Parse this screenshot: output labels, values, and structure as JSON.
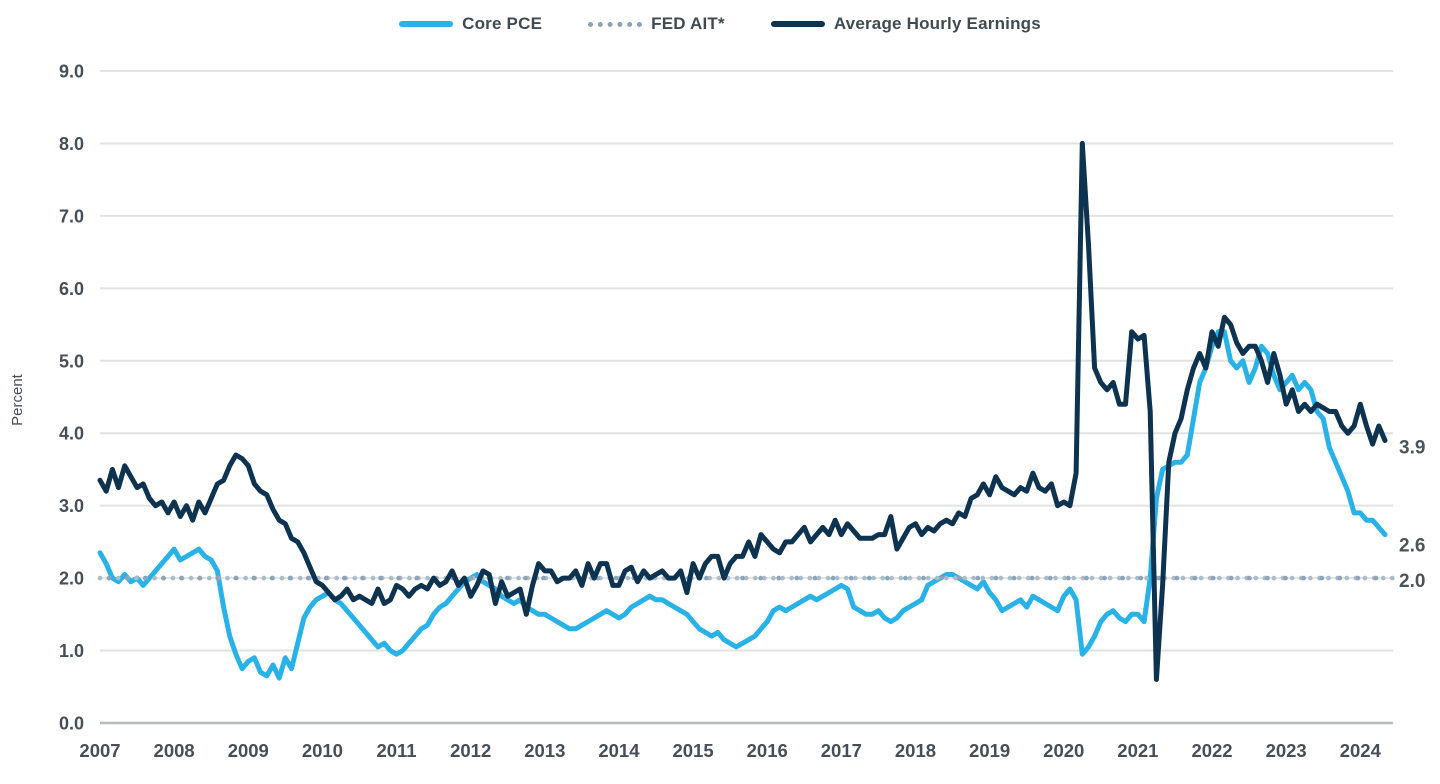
{
  "page": {
    "background": "#ffffff"
  },
  "legend": {
    "items": [
      {
        "label": "Core PCE",
        "color": "#29B2E8",
        "style": "solid"
      },
      {
        "label": "FED AIT*",
        "color": "#8CA3B8",
        "style": "dotted"
      },
      {
        "label": "Average Hourly Earnings",
        "color": "#0D3350",
        "style": "solid"
      }
    ]
  },
  "chart_data": {
    "type": "line",
    "ylabel": "Percent",
    "ylim": [
      0,
      9
    ],
    "ytick_labels": [
      "0.0",
      "1.0",
      "2.0",
      "3.0",
      "4.0",
      "5.0",
      "6.0",
      "7.0",
      "8.0",
      "9.0"
    ],
    "xtick_labels": [
      "2007",
      "2008",
      "2009",
      "2010",
      "2011",
      "2012",
      "2013",
      "2014",
      "2015",
      "2016",
      "2017",
      "2018",
      "2019",
      "2020",
      "2021",
      "2022",
      "2023",
      "2024"
    ],
    "x_frequency": "monthly",
    "x_start": "2007-01",
    "x_end": "2024-05",
    "grid": "horizontal",
    "legend_position": "top-center",
    "colors": {
      "gridline": "#E2E2E2",
      "zero_axis": "#B5BABA",
      "tick_text": "#464F58",
      "end_label_text": "#4A545C"
    },
    "end_labels": [
      {
        "text": "3.9",
        "value": 3.9,
        "series": "Average Hourly Earnings"
      },
      {
        "text": "2.6",
        "value": 2.6,
        "series": "Core PCE"
      },
      {
        "text": "2.0",
        "value": 2.0,
        "series": "FED AIT*"
      }
    ],
    "series": [
      {
        "name": "Core PCE",
        "color": "#29B2E8",
        "line_style": "solid",
        "values": [
          2.35,
          2.2,
          2.0,
          1.95,
          2.05,
          1.95,
          2.0,
          1.9,
          2.0,
          2.1,
          2.2,
          2.3,
          2.4,
          2.25,
          2.3,
          2.35,
          2.4,
          2.3,
          2.25,
          2.1,
          1.6,
          1.2,
          0.95,
          0.75,
          0.85,
          0.9,
          0.7,
          0.65,
          0.8,
          0.62,
          0.9,
          0.75,
          1.1,
          1.45,
          1.6,
          1.7,
          1.75,
          1.8,
          1.7,
          1.65,
          1.55,
          1.45,
          1.35,
          1.25,
          1.15,
          1.05,
          1.1,
          1.0,
          0.95,
          1.0,
          1.1,
          1.2,
          1.3,
          1.35,
          1.5,
          1.6,
          1.65,
          1.75,
          1.85,
          1.95,
          2.0,
          2.05,
          1.95,
          1.9,
          1.85,
          1.75,
          1.7,
          1.65,
          1.7,
          1.6,
          1.55,
          1.5,
          1.5,
          1.45,
          1.4,
          1.35,
          1.3,
          1.3,
          1.35,
          1.4,
          1.45,
          1.5,
          1.55,
          1.5,
          1.45,
          1.5,
          1.6,
          1.65,
          1.7,
          1.75,
          1.7,
          1.7,
          1.65,
          1.6,
          1.55,
          1.5,
          1.4,
          1.3,
          1.25,
          1.2,
          1.25,
          1.15,
          1.1,
          1.05,
          1.1,
          1.15,
          1.2,
          1.3,
          1.4,
          1.55,
          1.6,
          1.55,
          1.6,
          1.65,
          1.7,
          1.75,
          1.7,
          1.75,
          1.8,
          1.85,
          1.9,
          1.85,
          1.6,
          1.55,
          1.5,
          1.5,
          1.55,
          1.45,
          1.4,
          1.45,
          1.55,
          1.6,
          1.65,
          1.7,
          1.9,
          1.95,
          2.0,
          2.05,
          2.05,
          2.0,
          1.95,
          1.9,
          1.85,
          1.95,
          1.8,
          1.7,
          1.55,
          1.6,
          1.65,
          1.7,
          1.6,
          1.75,
          1.7,
          1.65,
          1.6,
          1.55,
          1.75,
          1.85,
          1.7,
          0.95,
          1.05,
          1.2,
          1.4,
          1.5,
          1.55,
          1.45,
          1.4,
          1.5,
          1.5,
          1.4,
          2.0,
          3.1,
          3.5,
          3.55,
          3.6,
          3.6,
          3.7,
          4.2,
          4.7,
          4.9,
          5.2,
          5.4,
          5.4,
          5.0,
          4.9,
          5.0,
          4.7,
          4.9,
          5.2,
          5.1,
          4.8,
          4.6,
          4.7,
          4.8,
          4.6,
          4.7,
          4.6,
          4.3,
          4.2,
          3.8,
          3.6,
          3.4,
          3.2,
          2.9,
          2.9,
          2.8,
          2.8,
          2.7,
          2.6
        ]
      },
      {
        "name": "FED AIT*",
        "color": "#8CA3B8",
        "color_alt": "#A9BCCB",
        "line_style": "dotted",
        "constant_value": 2.0
      },
      {
        "name": "Average Hourly Earnings",
        "color": "#0D3350",
        "line_style": "solid",
        "values": [
          3.35,
          3.2,
          3.5,
          3.25,
          3.55,
          3.4,
          3.25,
          3.3,
          3.1,
          3.0,
          3.05,
          2.9,
          3.05,
          2.85,
          3.0,
          2.8,
          3.05,
          2.9,
          3.1,
          3.3,
          3.35,
          3.55,
          3.7,
          3.65,
          3.55,
          3.3,
          3.2,
          3.15,
          2.95,
          2.8,
          2.75,
          2.55,
          2.5,
          2.35,
          2.15,
          1.95,
          1.9,
          1.8,
          1.7,
          1.75,
          1.85,
          1.7,
          1.75,
          1.7,
          1.65,
          1.85,
          1.65,
          1.7,
          1.9,
          1.85,
          1.75,
          1.85,
          1.9,
          1.85,
          2.0,
          1.9,
          1.95,
          2.1,
          1.9,
          2.0,
          1.75,
          1.9,
          2.1,
          2.05,
          1.65,
          1.95,
          1.75,
          1.8,
          1.85,
          1.5,
          1.9,
          2.2,
          2.1,
          2.1,
          1.95,
          2.0,
          2.0,
          2.1,
          1.9,
          2.2,
          2.0,
          2.2,
          2.2,
          1.9,
          1.9,
          2.1,
          2.15,
          1.95,
          2.1,
          2.0,
          2.05,
          2.1,
          2.0,
          2.0,
          2.1,
          1.8,
          2.2,
          2.0,
          2.2,
          2.3,
          2.3,
          2.0,
          2.2,
          2.3,
          2.3,
          2.5,
          2.3,
          2.6,
          2.5,
          2.4,
          2.35,
          2.5,
          2.5,
          2.6,
          2.7,
          2.5,
          2.6,
          2.7,
          2.6,
          2.8,
          2.6,
          2.75,
          2.65,
          2.55,
          2.55,
          2.55,
          2.6,
          2.6,
          2.85,
          2.4,
          2.55,
          2.7,
          2.75,
          2.6,
          2.7,
          2.65,
          2.75,
          2.8,
          2.75,
          2.9,
          2.85,
          3.1,
          3.15,
          3.3,
          3.15,
          3.4,
          3.25,
          3.2,
          3.15,
          3.25,
          3.2,
          3.45,
          3.25,
          3.2,
          3.3,
          3.0,
          3.05,
          3.0,
          3.45,
          8.0,
          6.6,
          4.9,
          4.7,
          4.6,
          4.7,
          4.4,
          4.4,
          5.4,
          5.3,
          5.35,
          4.3,
          0.6,
          1.9,
          3.6,
          4.0,
          4.2,
          4.6,
          4.9,
          5.1,
          4.9,
          5.4,
          5.2,
          5.6,
          5.5,
          5.25,
          5.1,
          5.2,
          5.2,
          5.0,
          4.7,
          5.1,
          4.8,
          4.4,
          4.6,
          4.3,
          4.4,
          4.3,
          4.4,
          4.35,
          4.3,
          4.3,
          4.1,
          4.0,
          4.1,
          4.4,
          4.1,
          3.85,
          4.1,
          3.9
        ]
      }
    ]
  }
}
